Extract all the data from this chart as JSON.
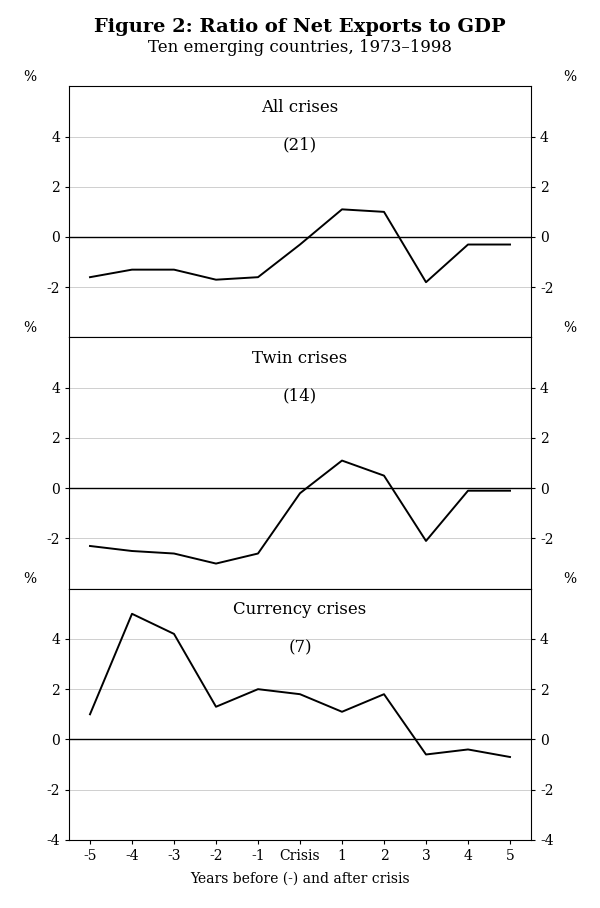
{
  "title": "Figure 2: Ratio of Net Exports to GDP",
  "subtitle": "Ten emerging countries, 1973–1998",
  "xlabel": "Years before (-) and after crisis",
  "x_labels": [
    "-5",
    "-4",
    "-3",
    "-2",
    "-1",
    "Crisis",
    "1",
    "2",
    "3",
    "4",
    "5"
  ],
  "x_values": [
    -5,
    -4,
    -3,
    -2,
    -1,
    0,
    1,
    2,
    3,
    4,
    5
  ],
  "panels": [
    {
      "title": "All crises",
      "subtitle": "(21)",
      "ylim": [
        -4,
        6
      ],
      "yticks": [
        -2,
        0,
        2,
        4
      ],
      "data": [
        -1.6,
        -1.3,
        -1.3,
        -1.7,
        -1.6,
        -0.3,
        1.1,
        1.0,
        -1.8,
        -0.3,
        -0.3
      ]
    },
    {
      "title": "Twin crises",
      "subtitle": "(14)",
      "ylim": [
        -4,
        6
      ],
      "yticks": [
        -2,
        0,
        2,
        4
      ],
      "data": [
        -2.3,
        -2.5,
        -2.6,
        -3.0,
        -2.6,
        -0.2,
        1.1,
        0.5,
        -2.1,
        -0.1,
        -0.1
      ]
    },
    {
      "title": "Currency crises",
      "subtitle": "(7)",
      "ylim": [
        -4,
        6
      ],
      "yticks": [
        -4,
        -2,
        0,
        2,
        4
      ],
      "data": [
        1.0,
        5.0,
        4.2,
        1.3,
        2.0,
        1.8,
        1.1,
        1.8,
        -0.6,
        -0.4,
        -0.7
      ]
    }
  ],
  "line_color": "#000000",
  "background_color": "#ffffff",
  "grid_color": "#c8c8c8",
  "zero_line_color": "#000000",
  "title_fontsize": 14,
  "subtitle_fontsize": 12,
  "panel_title_fontsize": 12,
  "panel_subtitle_fontsize": 12,
  "tick_fontsize": 10,
  "axis_label_fontsize": 10,
  "pct_fontsize": 10
}
